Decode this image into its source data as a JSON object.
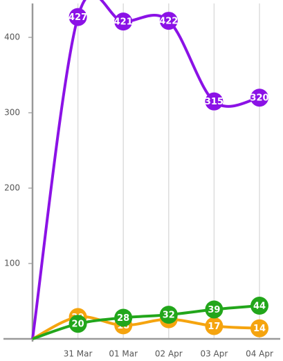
{
  "chart_data": {
    "type": "line",
    "categories": [
      null,
      "31 Mar",
      "01 Mar",
      "02 Apr",
      "03 Apr",
      "04 Apr"
    ],
    "series": [
      {
        "name": "purple",
        "color": "#8b12e6",
        "values": [
          0,
          427,
          421,
          422,
          315,
          320
        ]
      },
      {
        "name": "orange",
        "color": "#f5a40f",
        "values": [
          0,
          29,
          18,
          26,
          17,
          14
        ]
      },
      {
        "name": "green",
        "color": "#22a61b",
        "values": [
          0,
          20,
          28,
          32,
          39,
          44
        ]
      }
    ],
    "ylim": [
      0,
      445
    ],
    "yticks": [
      100,
      200,
      300,
      400
    ],
    "grid": true
  }
}
